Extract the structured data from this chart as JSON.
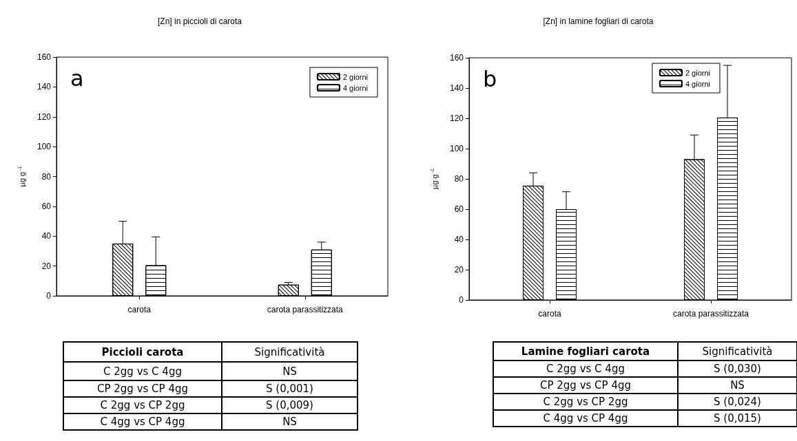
{
  "chart_data": [
    {
      "type": "bar",
      "title": "[Zn] in piccioli di carota",
      "ylabel": "µg g$^{-1}$",
      "annotations": [
        "a"
      ],
      "categories": [
        "carota",
        "carota parassitizzata"
      ],
      "ylim": [
        0,
        160
      ],
      "yticks": [
        0,
        20,
        40,
        60,
        80,
        100,
        120,
        140,
        160
      ],
      "grid": false,
      "legend": "top right",
      "series": [
        {
          "name": "2 giorni",
          "color": "#ffffff",
          "values": [
            35,
            7.5
          ],
          "errors": [
            [
              35,
              50
            ],
            [
              7.5,
              9
            ]
          ]
        },
        {
          "name": "4 giorni",
          "color": "#ffffff",
          "values": [
            20.5,
            31
          ],
          "errors": [
            [
              20.5,
              39.5
            ],
            [
              31,
              36
            ]
          ]
        }
      ]
    },
    {
      "type": "bar",
      "title": "[Zn] in lamine fogliari di carota",
      "ylabel": "µg g$^{-1}$",
      "annotations": [
        "b"
      ],
      "categories": [
        "carota",
        "carota parassitizzata"
      ],
      "ylim": [
        0,
        160
      ],
      "yticks": [
        0,
        20,
        40,
        60,
        80,
        100,
        120,
        140,
        160
      ],
      "grid": false,
      "legend": "top right",
      "series": [
        {
          "name": "2 giorni",
          "color": "#ffffff",
          "values": [
            75.5,
            93
          ],
          "errors": [
            [
              75.5,
              84
            ],
            [
              93,
              109
            ]
          ]
        },
        {
          "name": "4 giorni",
          "color": "#ffffff",
          "values": [
            60,
            120.5
          ],
          "errors": [
            [
              60,
              71.5
            ],
            [
              120.5,
              155
            ]
          ]
        }
      ]
    },
    {
      "type": "other",
      "annotations": [
        "Piccioli carota",
        "Significatività",
        "C 2gg vs C 4gg",
        "NS",
        "CP 2gg vs CP 4gg",
        "S (0,001)",
        "C 2gg vs CP 2gg",
        "S (0,009)",
        "C 4gg vs CP 4gg",
        "NS"
      ]
    },
    {
      "type": "other",
      "annotations": [
        "Lamine fogliari carota",
        "Significatività",
        "C 2gg vs C 4gg",
        "S (0,030)",
        "CP 2gg vs CP 4gg",
        "NS",
        "C 2gg vs CP 2gg",
        "S (0,024)",
        "C 4gg vs CP 4gg",
        "S (0,015)"
      ]
    }
  ]
}
